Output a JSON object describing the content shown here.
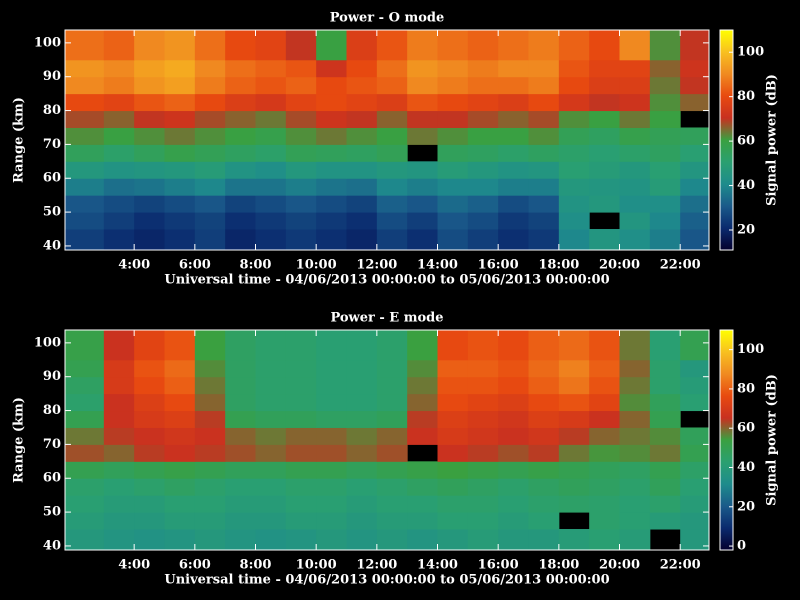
{
  "chart_data": [
    {
      "type": "heatmap",
      "title": "Power - O mode",
      "xlabel": "Universal time - 04/06/2013 00:00:00 to 05/06/2013 00:00:00",
      "ylabel": "Range (km)",
      "xlim": [
        1.72,
        22.95
      ],
      "ylim": [
        38.8,
        103.8
      ],
      "xticks": [
        {
          "value": 4,
          "label": "4:00"
        },
        {
          "value": 6,
          "label": "6:00"
        },
        {
          "value": 8,
          "label": "8:00"
        },
        {
          "value": 10,
          "label": "10:00"
        },
        {
          "value": 12,
          "label": "12:00"
        },
        {
          "value": 14,
          "label": "14:00"
        },
        {
          "value": 16,
          "label": "16:00"
        },
        {
          "value": 18,
          "label": "18:00"
        },
        {
          "value": 20,
          "label": "20:00"
        },
        {
          "value": 22,
          "label": "22:00"
        }
      ],
      "yticks": [
        40,
        50,
        60,
        70,
        80,
        90,
        100
      ],
      "xbins": [
        1.72,
        3,
        4,
        5,
        6,
        7,
        8,
        9,
        10,
        11,
        12,
        13,
        14,
        15,
        16,
        17,
        18,
        19,
        20,
        21,
        22,
        22.95
      ],
      "ybins": [
        38.8,
        45,
        50,
        55,
        60,
        65,
        70,
        75,
        80,
        85,
        90,
        95,
        103.8
      ],
      "values": [
        [
          25,
          22,
          20,
          22,
          25,
          20,
          22,
          24,
          22,
          20,
          25,
          22,
          28,
          25,
          22,
          24,
          40,
          45,
          42,
          38,
          30
        ],
        [
          28,
          25,
          22,
          24,
          26,
          22,
          24,
          26,
          24,
          22,
          28,
          25,
          30,
          28,
          24,
          26,
          42,
          null,
          45,
          40,
          32
        ],
        [
          30,
          28,
          26,
          28,
          30,
          26,
          28,
          30,
          28,
          26,
          32,
          30,
          34,
          32,
          28,
          30,
          44,
          46,
          42,
          42,
          35
        ],
        [
          38,
          35,
          36,
          38,
          40,
          36,
          36,
          38,
          36,
          35,
          40,
          38,
          40,
          40,
          38,
          38,
          46,
          45,
          44,
          48,
          40
        ],
        [
          46,
          44,
          45,
          46,
          48,
          44,
          42,
          46,
          44,
          44,
          46,
          45,
          48,
          46,
          44,
          45,
          50,
          48,
          46,
          50,
          45
        ],
        [
          55,
          52,
          55,
          58,
          56,
          54,
          52,
          56,
          55,
          54,
          56,
          null,
          55,
          54,
          52,
          54,
          52,
          50,
          52,
          54,
          50
        ],
        [
          62,
          60,
          62,
          64,
          62,
          60,
          58,
          62,
          64,
          62,
          60,
          64,
          62,
          60,
          60,
          62,
          56,
          54,
          58,
          56,
          55
        ],
        [
          68,
          66,
          70,
          72,
          68,
          66,
          64,
          68,
          72,
          70,
          66,
          70,
          70,
          68,
          66,
          68,
          62,
          60,
          64,
          60,
          null
        ],
        [
          80,
          78,
          82,
          84,
          80,
          76,
          74,
          78,
          80,
          78,
          76,
          82,
          80,
          78,
          76,
          80,
          74,
          70,
          72,
          62,
          66
        ],
        [
          90,
          88,
          92,
          94,
          88,
          84,
          82,
          84,
          80,
          82,
          84,
          90,
          88,
          86,
          86,
          88,
          80,
          76,
          76,
          64,
          70
        ],
        [
          92,
          90,
          94,
          96,
          90,
          86,
          84,
          82,
          72,
          80,
          86,
          92,
          90,
          88,
          90,
          90,
          82,
          78,
          78,
          66,
          72
        ],
        [
          86,
          84,
          90,
          92,
          86,
          80,
          78,
          70,
          60,
          76,
          82,
          88,
          86,
          84,
          86,
          88,
          84,
          80,
          90,
          62,
          70
        ]
      ],
      "colorbar": {
        "label": "Signal power (dB)",
        "zlim": [
          11,
          110
        ],
        "ticks": [
          20,
          40,
          60,
          80,
          100
        ]
      },
      "colormap": [
        "#05002e",
        "#0a2a6e",
        "#1a5a8a",
        "#1e8c8c",
        "#2aa070",
        "#3aa040",
        "#c83020",
        "#e84a10",
        "#f08a20",
        "#f8c020",
        "#ffff00"
      ]
    },
    {
      "type": "heatmap",
      "title": "Power - E mode",
      "xlabel": "Universal time - 04/06/2013 00:00:00 to 05/06/2013 00:00:00",
      "ylabel": "Range (km)",
      "xlim": [
        1.72,
        22.95
      ],
      "ylim": [
        38.8,
        103.8
      ],
      "xticks": [
        {
          "value": 4,
          "label": "4:00"
        },
        {
          "value": 6,
          "label": "6:00"
        },
        {
          "value": 8,
          "label": "8:00"
        },
        {
          "value": 10,
          "label": "10:00"
        },
        {
          "value": 12,
          "label": "12:00"
        },
        {
          "value": 14,
          "label": "14:00"
        },
        {
          "value": 16,
          "label": "16:00"
        },
        {
          "value": 18,
          "label": "18:00"
        },
        {
          "value": 20,
          "label": "20:00"
        },
        {
          "value": 22,
          "label": "22:00"
        }
      ],
      "yticks": [
        40,
        50,
        60,
        70,
        80,
        90,
        100
      ],
      "xbins": [
        1.72,
        3,
        4,
        5,
        6,
        7,
        8,
        9,
        10,
        11,
        12,
        13,
        14,
        15,
        16,
        17,
        18,
        19,
        20,
        21,
        22,
        22.95
      ],
      "ybins": [
        38.8,
        45,
        50,
        55,
        60,
        65,
        70,
        75,
        80,
        85,
        90,
        95,
        103.8
      ],
      "values": [
        [
          38,
          36,
          35,
          36,
          38,
          36,
          35,
          36,
          38,
          36,
          38,
          36,
          38,
          40,
          38,
          38,
          40,
          42,
          40,
          null,
          38
        ],
        [
          40,
          38,
          38,
          40,
          40,
          38,
          38,
          40,
          40,
          38,
          40,
          40,
          42,
          42,
          40,
          42,
          null,
          44,
          42,
          40,
          38
        ],
        [
          42,
          40,
          40,
          42,
          42,
          40,
          40,
          42,
          42,
          40,
          42,
          42,
          44,
          44,
          42,
          44,
          45,
          44,
          42,
          44,
          40
        ],
        [
          44,
          42,
          44,
          46,
          44,
          42,
          42,
          44,
          44,
          42,
          44,
          46,
          48,
          46,
          44,
          46,
          48,
          46,
          44,
          48,
          42
        ],
        [
          50,
          48,
          50,
          52,
          50,
          48,
          48,
          50,
          50,
          48,
          50,
          52,
          54,
          52,
          50,
          52,
          50,
          48,
          46,
          50,
          45
        ],
        [
          62,
          60,
          64,
          66,
          64,
          62,
          60,
          62,
          62,
          60,
          62,
          null,
          66,
          64,
          62,
          64,
          58,
          55,
          56,
          58,
          50
        ],
        [
          58,
          64,
          66,
          68,
          66,
          60,
          58,
          60,
          60,
          58,
          60,
          66,
          70,
          68,
          66,
          68,
          64,
          60,
          58,
          56,
          48
        ],
        [
          50,
          66,
          70,
          72,
          64,
          50,
          48,
          48,
          46,
          46,
          48,
          64,
          72,
          70,
          68,
          72,
          70,
          66,
          60,
          50,
          null
        ],
        [
          44,
          66,
          72,
          76,
          60,
          46,
          44,
          44,
          42,
          42,
          44,
          60,
          76,
          74,
          72,
          76,
          78,
          74,
          56,
          48,
          42
        ],
        [
          46,
          70,
          76,
          80,
          58,
          46,
          44,
          44,
          42,
          42,
          44,
          58,
          78,
          78,
          76,
          80,
          84,
          78,
          58,
          44,
          40
        ],
        [
          50,
          70,
          78,
          82,
          56,
          46,
          44,
          44,
          42,
          42,
          44,
          56,
          80,
          80,
          78,
          82,
          86,
          80,
          60,
          44,
          38
        ],
        [
          52,
          66,
          74,
          78,
          54,
          46,
          44,
          44,
          42,
          42,
          44,
          54,
          76,
          78,
          76,
          80,
          82,
          78,
          58,
          42,
          50
        ]
      ],
      "colorbar": {
        "label": "Signal power (dB)",
        "zlim": [
          -2,
          110
        ],
        "ticks": [
          0,
          20,
          40,
          60,
          80,
          100
        ]
      },
      "colormap": [
        "#05002e",
        "#0a2a6e",
        "#1a5a8a",
        "#1e8c8c",
        "#2aa070",
        "#3aa040",
        "#c83020",
        "#e84a10",
        "#f08a20",
        "#f8c020",
        "#ffff00"
      ]
    }
  ]
}
